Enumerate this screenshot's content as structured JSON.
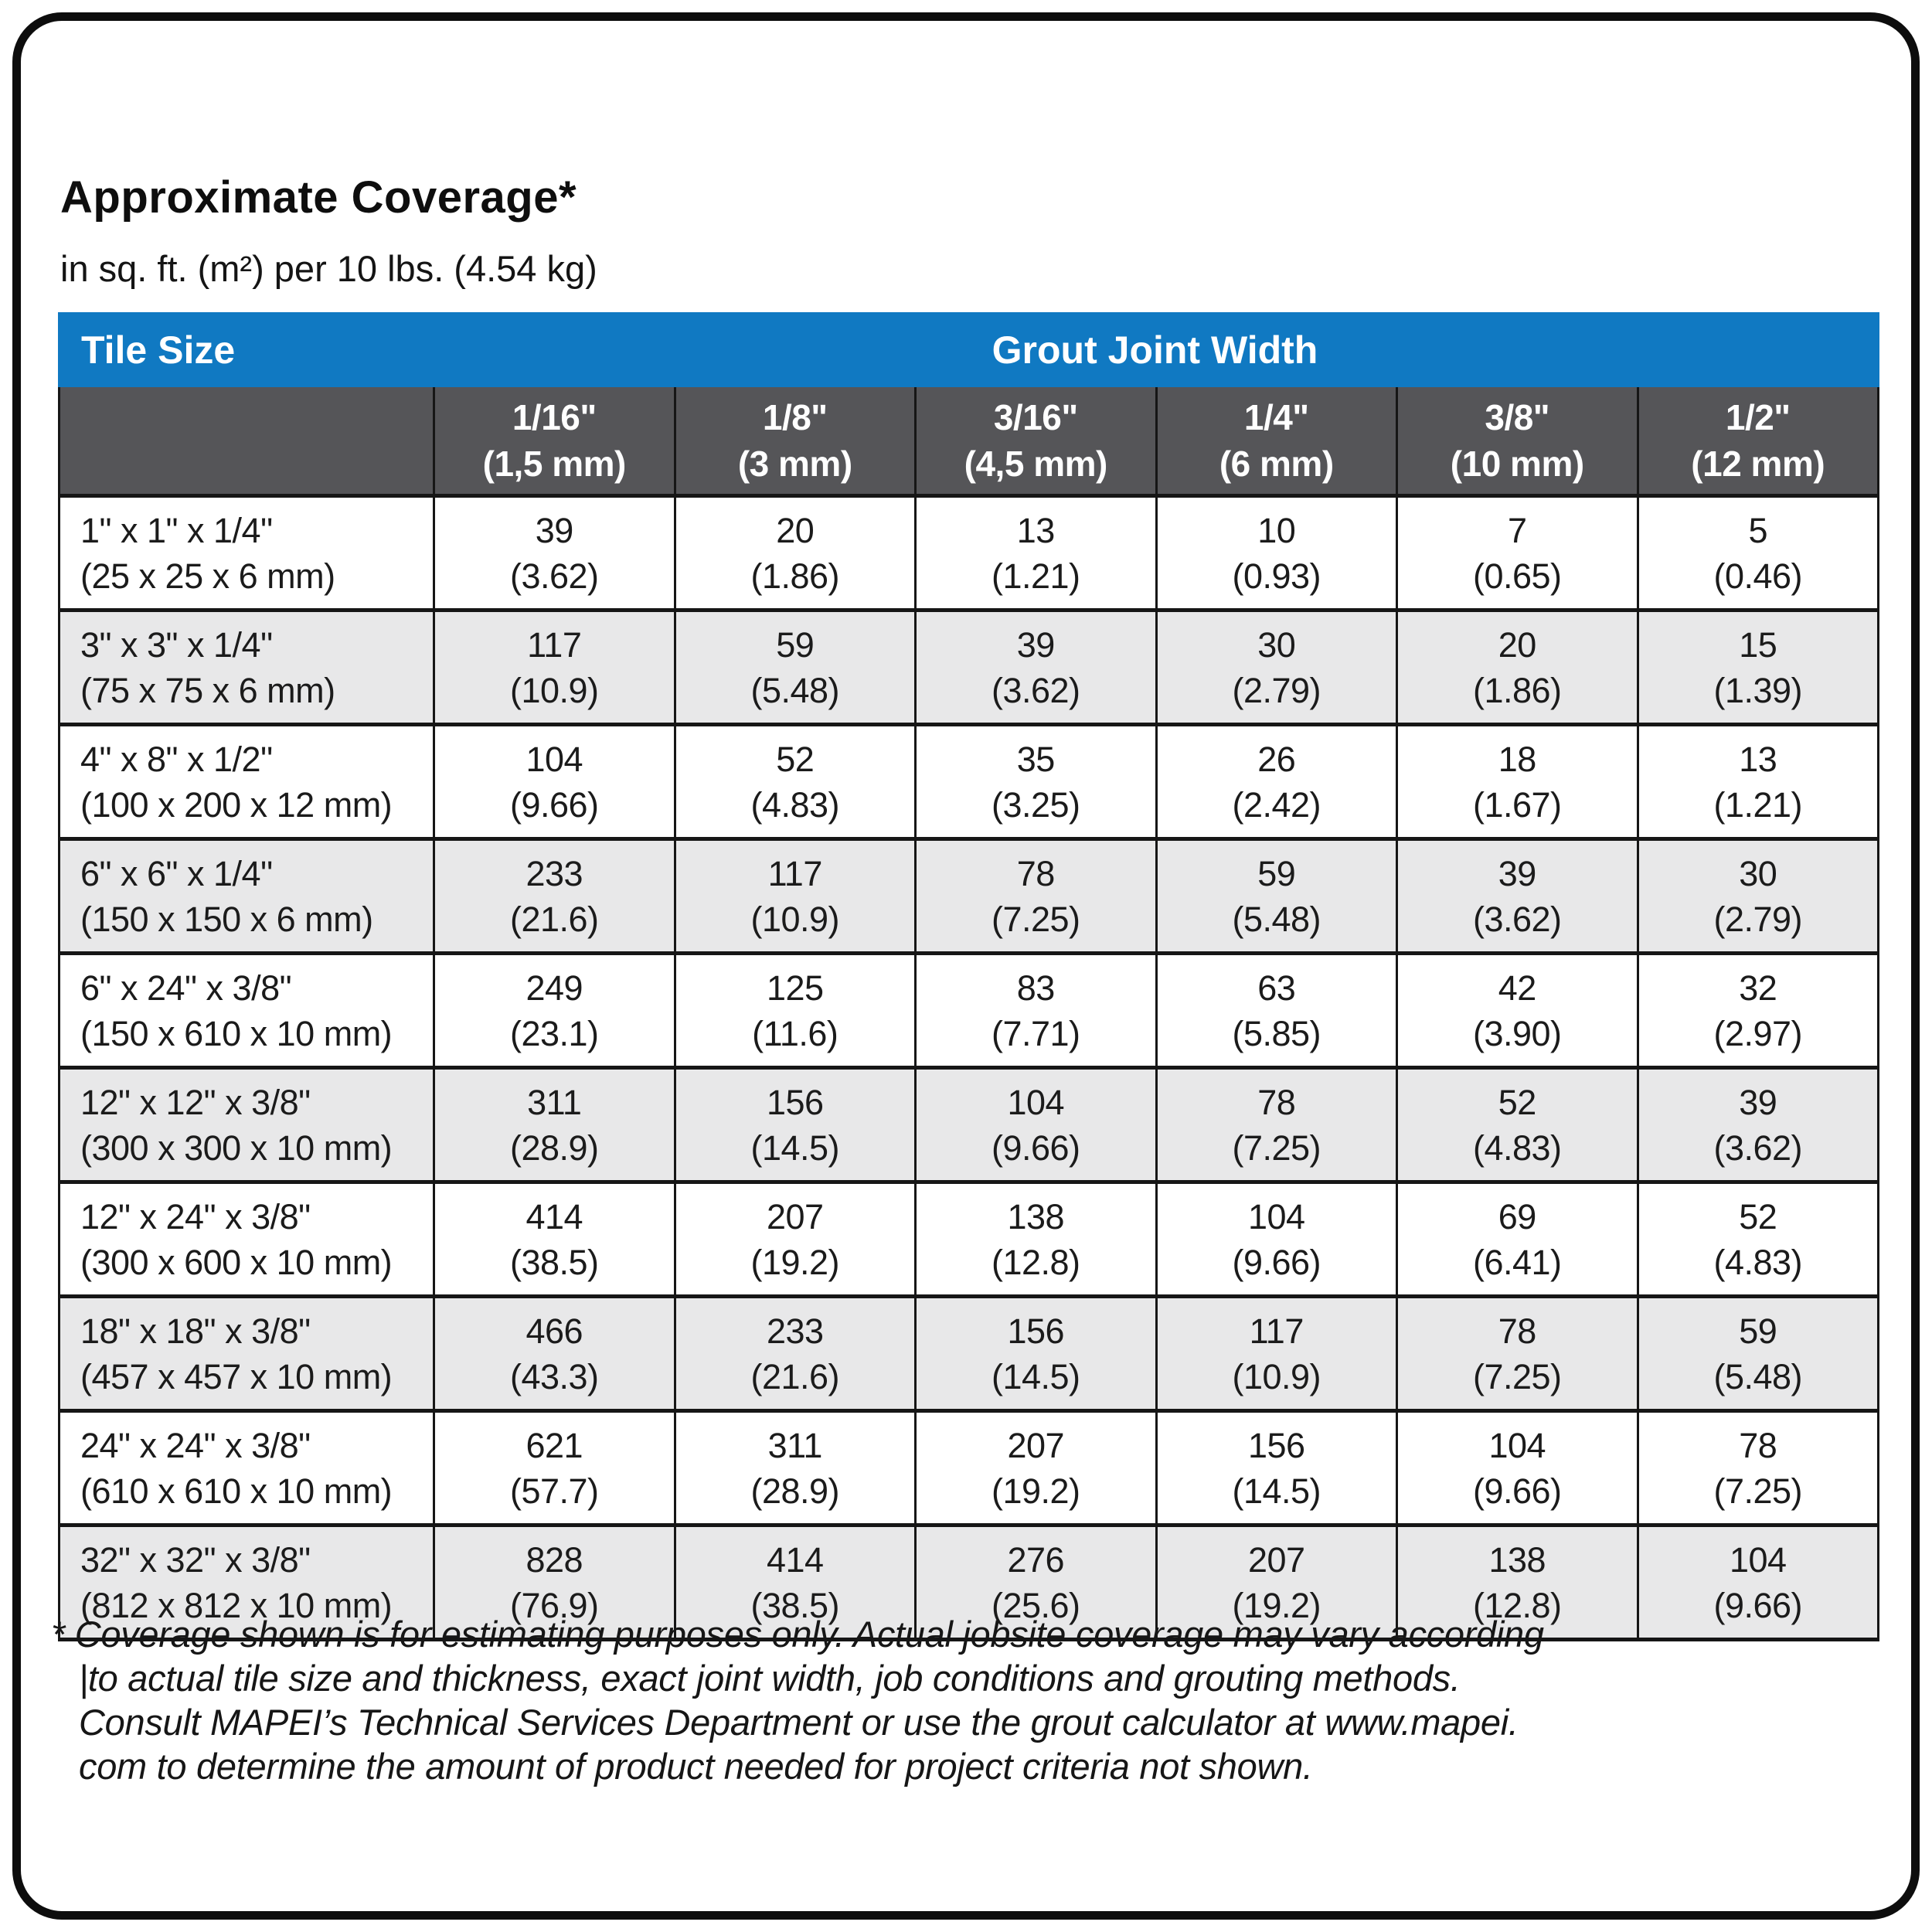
{
  "page": {
    "title": "Approximate Coverage*",
    "subtitle": "in sq. ft. (m²) per 10 lbs. (4.54 kg)"
  },
  "colors": {
    "header_blue": "#1079c2",
    "header_dark": "#555558",
    "row_stripe": "#e8e8e9"
  },
  "table": {
    "tile_size_label": "Tile Size",
    "grout_joint_width_label": "Grout Joint Width",
    "columns": [
      {
        "size": "1/16\"",
        "metric": "(1,5 mm)"
      },
      {
        "size": "1/8\"",
        "metric": "(3 mm)"
      },
      {
        "size": "3/16\"",
        "metric": "(4,5 mm)"
      },
      {
        "size": "1/4\"",
        "metric": "(6 mm)"
      },
      {
        "size": "3/8\"",
        "metric": "(10 mm)"
      },
      {
        "size": "1/2\"",
        "metric": "(12 mm)"
      }
    ],
    "rows": [
      {
        "size": "1\" x 1\" x 1/4\"",
        "metric": "(25 x 25 x 6 mm)",
        "cells": [
          {
            "value": "39",
            "metric": "(3.62)"
          },
          {
            "value": "20",
            "metric": "(1.86)"
          },
          {
            "value": "13",
            "metric": "(1.21)"
          },
          {
            "value": "10",
            "metric": "(0.93)"
          },
          {
            "value": "7",
            "metric": "(0.65)"
          },
          {
            "value": "5",
            "metric": "(0.46)"
          }
        ]
      },
      {
        "size": "3\" x 3\" x 1/4\"",
        "metric": "(75 x 75 x 6 mm)",
        "cells": [
          {
            "value": "117",
            "metric": "(10.9)"
          },
          {
            "value": "59",
            "metric": "(5.48)"
          },
          {
            "value": "39",
            "metric": "(3.62)"
          },
          {
            "value": "30",
            "metric": "(2.79)"
          },
          {
            "value": "20",
            "metric": "(1.86)"
          },
          {
            "value": "15",
            "metric": "(1.39)"
          }
        ]
      },
      {
        "size": "4\" x 8\" x 1/2\"",
        "metric": "(100 x 200 x 12 mm)",
        "cells": [
          {
            "value": "104",
            "metric": "(9.66)"
          },
          {
            "value": "52",
            "metric": "(4.83)"
          },
          {
            "value": "35",
            "metric": "(3.25)"
          },
          {
            "value": "26",
            "metric": "(2.42)"
          },
          {
            "value": "18",
            "metric": "(1.67)"
          },
          {
            "value": "13",
            "metric": "(1.21)"
          }
        ]
      },
      {
        "size": "6\" x 6\" x 1/4\"",
        "metric": "(150 x 150 x 6 mm)",
        "cells": [
          {
            "value": "233",
            "metric": "(21.6)"
          },
          {
            "value": "117",
            "metric": "(10.9)"
          },
          {
            "value": "78",
            "metric": "(7.25)"
          },
          {
            "value": "59",
            "metric": "(5.48)"
          },
          {
            "value": "39",
            "metric": "(3.62)"
          },
          {
            "value": "30",
            "metric": "(2.79)"
          }
        ]
      },
      {
        "size": "6\" x 24\" x 3/8\"",
        "metric": "(150 x 610 x 10 mm)",
        "cells": [
          {
            "value": "249",
            "metric": "(23.1)"
          },
          {
            "value": "125",
            "metric": "(11.6)"
          },
          {
            "value": "83",
            "metric": "(7.71)"
          },
          {
            "value": "63",
            "metric": "(5.85)"
          },
          {
            "value": "42",
            "metric": "(3.90)"
          },
          {
            "value": "32",
            "metric": "(2.97)"
          }
        ]
      },
      {
        "size": "12\" x 12\" x 3/8\"",
        "metric": "(300 x 300 x 10 mm)",
        "cells": [
          {
            "value": "311",
            "metric": "(28.9)"
          },
          {
            "value": "156",
            "metric": "(14.5)"
          },
          {
            "value": "104",
            "metric": "(9.66)"
          },
          {
            "value": "78",
            "metric": "(7.25)"
          },
          {
            "value": "52",
            "metric": "(4.83)"
          },
          {
            "value": "39",
            "metric": "(3.62)"
          }
        ]
      },
      {
        "size": "12\" x 24\" x 3/8\"",
        "metric": "(300 x 600 x 10 mm)",
        "cells": [
          {
            "value": "414",
            "metric": "(38.5)"
          },
          {
            "value": "207",
            "metric": "(19.2)"
          },
          {
            "value": "138",
            "metric": "(12.8)"
          },
          {
            "value": "104",
            "metric": "(9.66)"
          },
          {
            "value": "69",
            "metric": "(6.41)"
          },
          {
            "value": "52",
            "metric": "(4.83)"
          }
        ]
      },
      {
        "size": "18\" x 18\" x 3/8\"",
        "metric": "(457 x 457 x 10 mm)",
        "cells": [
          {
            "value": "466",
            "metric": "(43.3)"
          },
          {
            "value": "233",
            "metric": "(21.6)"
          },
          {
            "value": "156",
            "metric": "(14.5)"
          },
          {
            "value": "117",
            "metric": "(10.9)"
          },
          {
            "value": "78",
            "metric": "(7.25)"
          },
          {
            "value": "59",
            "metric": "(5.48)"
          }
        ]
      },
      {
        "size": "24\" x 24\" x 3/8\"",
        "metric": "(610 x 610 x 10 mm)",
        "cells": [
          {
            "value": "621",
            "metric": "(57.7)"
          },
          {
            "value": "311",
            "metric": "(28.9)"
          },
          {
            "value": "207",
            "metric": "(19.2)"
          },
          {
            "value": "156",
            "metric": "(14.5)"
          },
          {
            "value": "104",
            "metric": "(9.66)"
          },
          {
            "value": "78",
            "metric": "(7.25)"
          }
        ]
      },
      {
        "size": "32\" x 32\" x 3/8\"",
        "metric": "(812 x 812 x 10 mm)",
        "cells": [
          {
            "value": "828",
            "metric": "(76.9)"
          },
          {
            "value": "414",
            "metric": "(38.5)"
          },
          {
            "value": "276",
            "metric": "(25.6)"
          },
          {
            "value": "207",
            "metric": "(19.2)"
          },
          {
            "value": "138",
            "metric": "(12.8)"
          },
          {
            "value": "104",
            "metric": "(9.66)"
          }
        ]
      }
    ]
  },
  "footnote": {
    "lines": [
      "* Coverage shown is for estimating purposes only. Actual jobsite coverage may vary according",
      "|to actual tile size and thickness, exact joint width, job conditions and grouting methods.",
      "Consult MAPEI’s Technical Services Department or use the grout calculator at www.mapei.",
      "com to determine the amount of product needed for project criteria not shown."
    ]
  }
}
